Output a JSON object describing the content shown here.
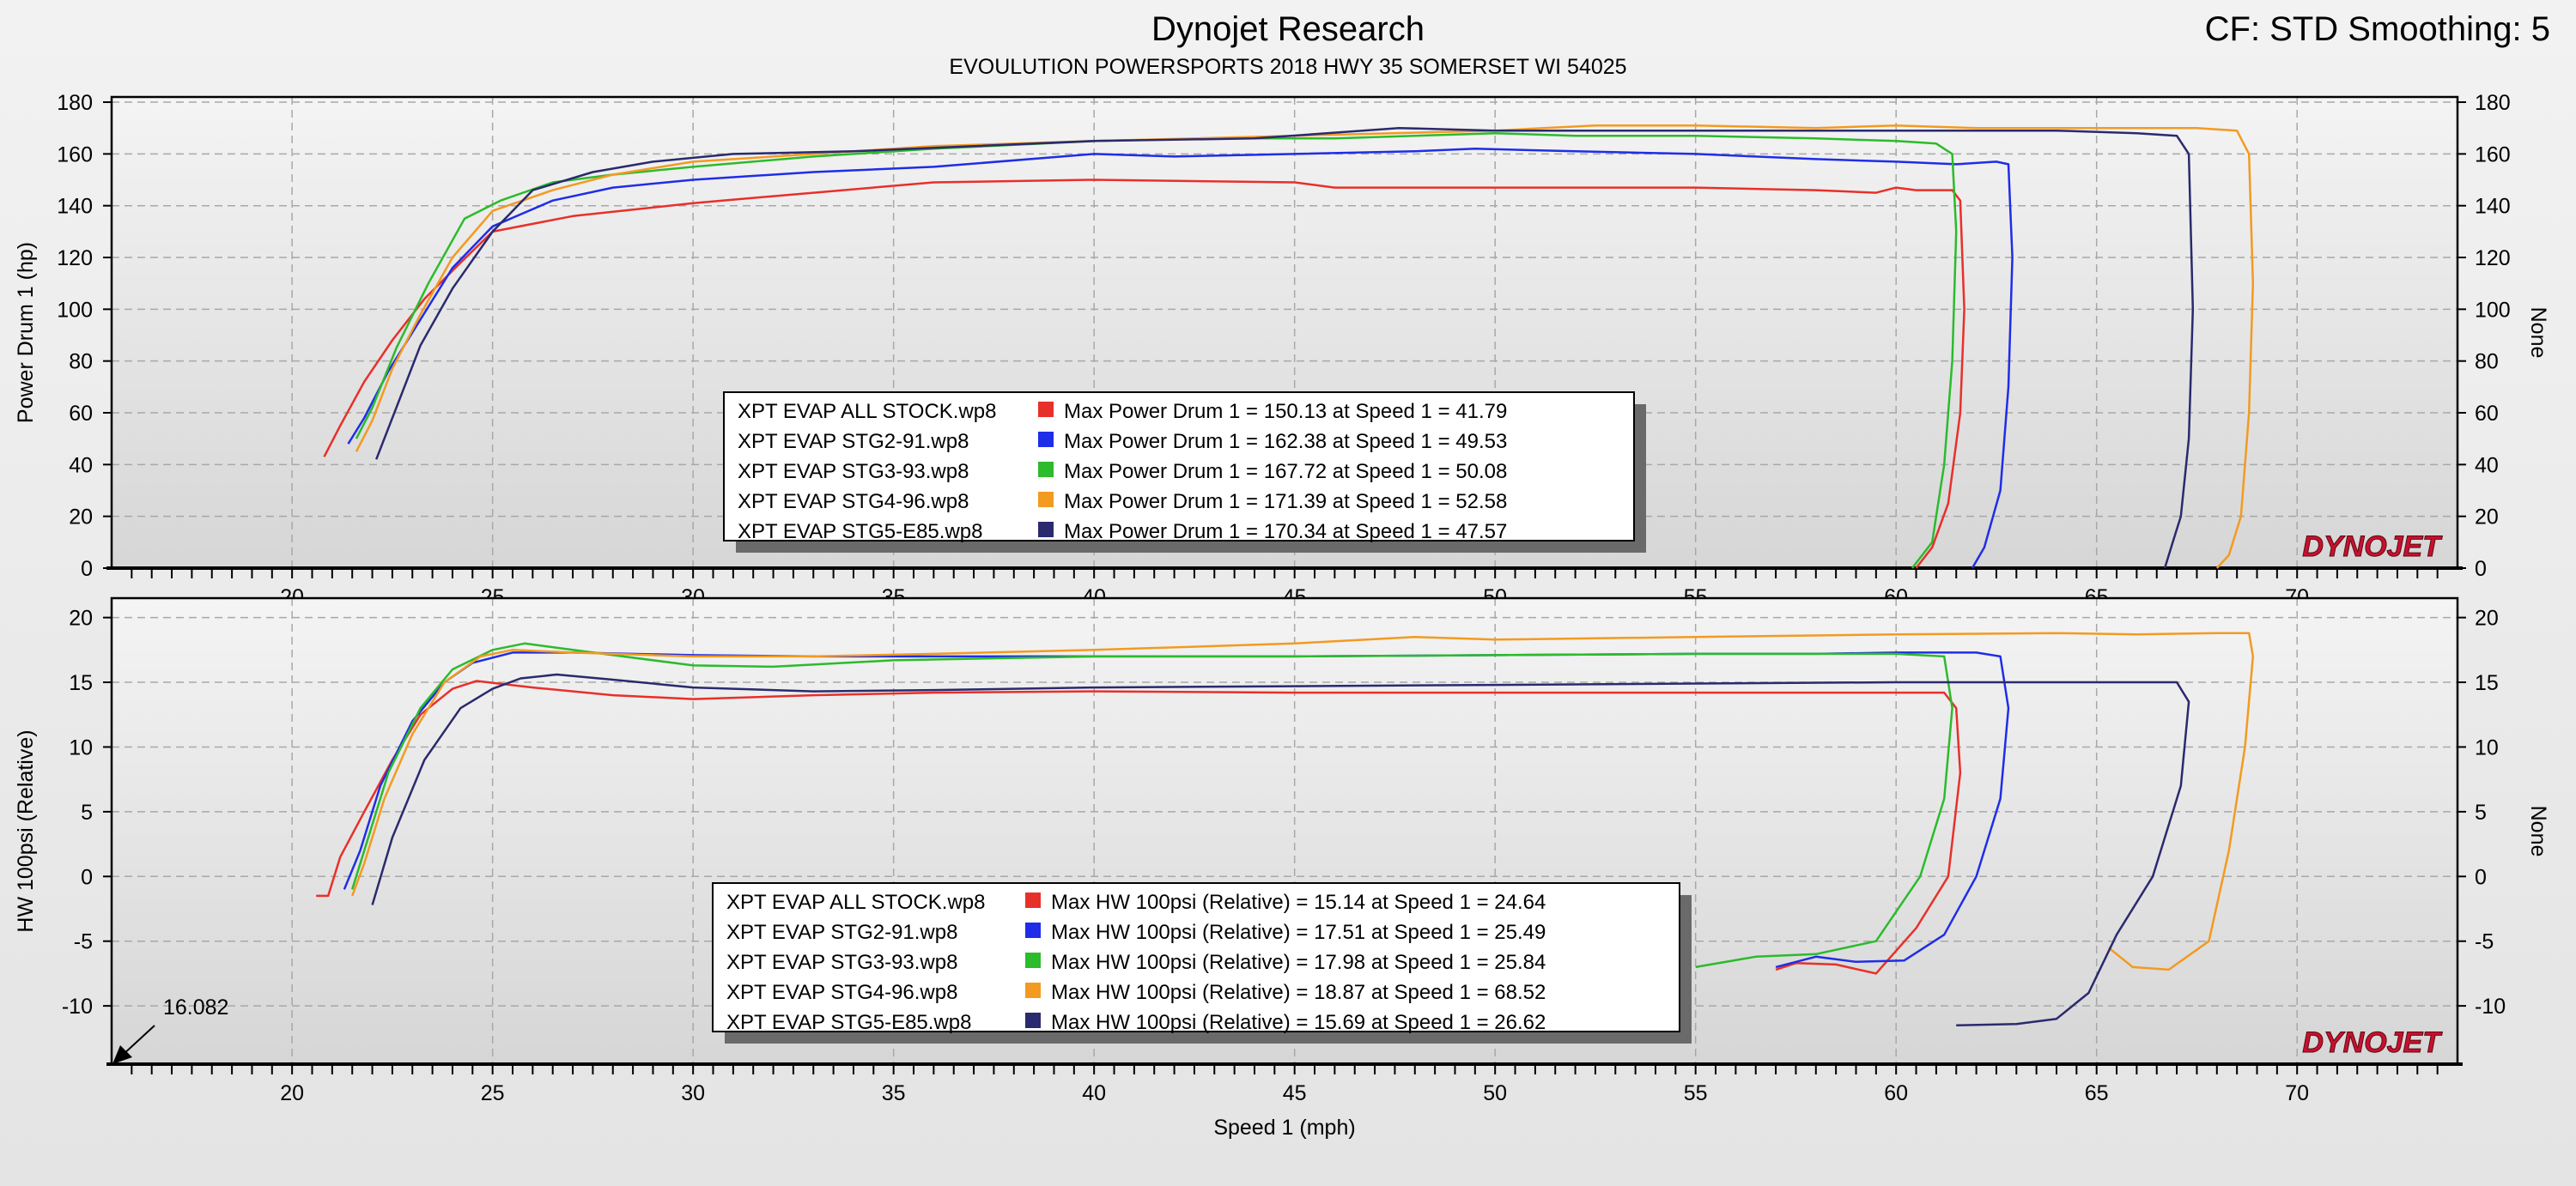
{
  "header": {
    "title": "Dynojet Research",
    "subtitle": "EVOULUTION POWERSPORTS 2018 HWY 35 SOMERSET WI 54025",
    "cf_info": "CF: STD Smoothing: 5"
  },
  "colors": {
    "run1": "#e8302a",
    "run2": "#1f2de8",
    "run3": "#2bbb2b",
    "run4": "#f39a21",
    "run5": "#2a2a6e",
    "brand_red": "#c8102e"
  },
  "brand_logo": "DYNOJET",
  "chart_data": [
    {
      "type": "line",
      "ylabel": "Power Drum 1 (hp)",
      "ylabel_right": "None",
      "xlabel": "Speed 1 (mph)",
      "xlim": [
        15.5,
        74
      ],
      "ylim": [
        0,
        182
      ],
      "x_ticks": [
        "20",
        "25",
        "30",
        "35",
        "40",
        "45",
        "50",
        "55",
        "60",
        "65",
        "70"
      ],
      "y_ticks": [
        "0",
        "20",
        "40",
        "60",
        "80",
        "100",
        "120",
        "140",
        "160",
        "180"
      ],
      "grid": true,
      "legend_position": "center-bottom",
      "series": [
        {
          "name": "XPT EVAP ALL STOCK.wp8",
          "color": "#e8302a",
          "x": [
            20.8,
            21.2,
            21.8,
            22.5,
            23.3,
            24.2,
            25.0,
            27.0,
            30.0,
            33.0,
            36.0,
            40.0,
            45.0,
            46.0,
            50.0,
            55.0,
            58.0,
            59.5,
            60.0,
            60.5,
            61.0,
            61.4,
            61.6,
            61.7,
            61.6,
            61.3,
            60.9,
            60.5
          ],
          "y": [
            43,
            55,
            72,
            88,
            104,
            118,
            130,
            136,
            141,
            145,
            149,
            150,
            149,
            147,
            147,
            147,
            146,
            145,
            147,
            146,
            146,
            146,
            142,
            100,
            60,
            25,
            8,
            0
          ]
        },
        {
          "name": "XPT EVAP STG2-91.wp8",
          "color": "#1f2de8",
          "x": [
            21.4,
            21.8,
            22.4,
            23.2,
            24.0,
            25.0,
            26.5,
            28.0,
            30.0,
            33.0,
            36.0,
            40.0,
            42.0,
            45.0,
            48.0,
            49.5,
            52.0,
            55.0,
            58.0,
            60.0,
            61.5,
            62.5,
            62.8,
            62.9,
            62.8,
            62.6,
            62.2,
            61.9
          ],
          "y": [
            48,
            58,
            76,
            96,
            116,
            132,
            142,
            147,
            150,
            153,
            155,
            160,
            159,
            160,
            161,
            162,
            161,
            160,
            158,
            157,
            156,
            157,
            156,
            120,
            70,
            30,
            8,
            0
          ]
        },
        {
          "name": "XPT EVAP STG3-93.wp8",
          "color": "#2bbb2b",
          "x": [
            21.6,
            22.0,
            22.6,
            23.4,
            24.3,
            25.2,
            26.5,
            28.0,
            30.0,
            33.0,
            36.0,
            40.0,
            43.0,
            46.0,
            50.0,
            52.0,
            55.0,
            58.0,
            60.0,
            61.0,
            61.4,
            61.5,
            61.4,
            61.2,
            60.9,
            60.4
          ],
          "y": [
            50,
            62,
            85,
            110,
            135,
            142,
            149,
            152,
            155,
            159,
            162,
            165,
            166,
            166,
            168,
            167,
            167,
            166,
            165,
            164,
            160,
            130,
            80,
            40,
            10,
            0
          ]
        },
        {
          "name": "XPT EVAP STG4-96.wp8",
          "color": "#f39a21",
          "x": [
            21.6,
            22.0,
            22.5,
            23.2,
            24.0,
            25.0,
            26.5,
            28.0,
            30.0,
            33.0,
            36.0,
            40.0,
            45.0,
            50.0,
            52.5,
            55.0,
            58.0,
            60.0,
            62.0,
            64.0,
            66.0,
            67.5,
            68.5,
            68.8,
            68.9,
            68.8,
            68.6,
            68.3,
            68.0
          ],
          "y": [
            45,
            57,
            77,
            98,
            120,
            138,
            146,
            152,
            157,
            160,
            163,
            165,
            167,
            169,
            171,
            171,
            170,
            171,
            170,
            170,
            170,
            170,
            169,
            160,
            110,
            60,
            20,
            5,
            0
          ]
        },
        {
          "name": "XPT EVAP STG5-E85.wp8",
          "color": "#2a2a6e",
          "x": [
            22.1,
            22.6,
            23.2,
            24.0,
            25.0,
            26.0,
            27.5,
            29.0,
            31.0,
            34.0,
            37.0,
            40.0,
            44.0,
            47.6,
            50.0,
            54.0,
            58.0,
            61.0,
            64.0,
            66.0,
            67.0,
            67.3,
            67.4,
            67.3,
            67.1,
            66.9,
            66.7
          ],
          "y": [
            42,
            62,
            86,
            108,
            130,
            146,
            153,
            157,
            160,
            161,
            163,
            165,
            166,
            170,
            169,
            169,
            169,
            169,
            169,
            168,
            167,
            160,
            100,
            50,
            20,
            10,
            0
          ]
        }
      ],
      "legend_stats": [
        "Max Power Drum 1 = 150.13 at Speed 1 = 41.79",
        "Max Power Drum 1 = 162.38 at Speed 1 = 49.53",
        "Max Power Drum 1 = 167.72 at Speed 1 = 50.08",
        "Max Power Drum 1 = 171.39 at Speed 1 = 52.58",
        "Max Power Drum 1 = 170.34 at Speed 1 = 47.57"
      ]
    },
    {
      "type": "line",
      "ylabel": "HW 100psi (Relative)",
      "ylabel_right": "None",
      "xlabel": "Speed 1 (mph)",
      "xlim": [
        15.5,
        74
      ],
      "ylim": [
        -14.5,
        21.5
      ],
      "x_ticks": [
        "20",
        "25",
        "30",
        "35",
        "40",
        "45",
        "50",
        "55",
        "60",
        "65",
        "70"
      ],
      "y_ticks": [
        "-10",
        "-5",
        "0",
        "5",
        "10",
        "15",
        "20"
      ],
      "grid": true,
      "legend_position": "center-bottom",
      "annotation": "16.082",
      "series": [
        {
          "name": "XPT EVAP ALL STOCK.wp8",
          "color": "#e8302a",
          "x": [
            20.6,
            20.9,
            21.2,
            21.8,
            22.5,
            23.2,
            24.0,
            24.6,
            26.0,
            28.0,
            30.0,
            33.0,
            36.0,
            40.0,
            45.0,
            50.0,
            55.0,
            58.0,
            60.0,
            61.2,
            61.5,
            61.6,
            61.3,
            60.5,
            59.5,
            58.5,
            57.5,
            57.0
          ],
          "y": [
            -1.5,
            -1.5,
            1.5,
            5,
            9,
            12.5,
            14.5,
            15.1,
            14.6,
            14,
            13.7,
            14,
            14.2,
            14.3,
            14.2,
            14.2,
            14.2,
            14.2,
            14.2,
            14.2,
            13,
            8,
            0,
            -4,
            -7.5,
            -6.8,
            -6.7,
            -7.2
          ]
        },
        {
          "name": "XPT EVAP STG2-91.wp8",
          "color": "#1f2de8",
          "x": [
            21.3,
            21.7,
            22.2,
            23.0,
            23.8,
            24.5,
            25.5,
            27.0,
            30.0,
            33.0,
            36.0,
            40.0,
            45.0,
            50.0,
            55.0,
            58.0,
            60.0,
            62.0,
            62.6,
            62.8,
            62.6,
            62.0,
            61.2,
            60.2,
            59.0,
            58.0,
            57.0
          ],
          "y": [
            -1,
            2,
            7,
            12,
            15,
            16.5,
            17.3,
            17.3,
            17.1,
            17,
            17,
            17,
            17,
            17.1,
            17.2,
            17.2,
            17.3,
            17.3,
            17,
            13,
            6,
            0,
            -4.5,
            -6.5,
            -6.6,
            -6.2,
            -7
          ]
        },
        {
          "name": "XPT EVAP STG3-93.wp8",
          "color": "#2bbb2b",
          "x": [
            21.5,
            21.9,
            22.4,
            23.2,
            24.0,
            25.0,
            25.8,
            27.0,
            30.0,
            32.0,
            35.0,
            40.0,
            45.0,
            50.0,
            55.0,
            58.0,
            60.0,
            61.2,
            61.4,
            61.2,
            60.6,
            59.5,
            58.0,
            56.5,
            55.0
          ],
          "y": [
            -1,
            3,
            8,
            13,
            16,
            17.5,
            18,
            17.5,
            16.3,
            16.2,
            16.7,
            17,
            17,
            17.1,
            17.2,
            17.2,
            17.2,
            17,
            13,
            6,
            0,
            -5,
            -6,
            -6.2,
            -7
          ]
        },
        {
          "name": "XPT EVAP STG4-96.wp8",
          "color": "#f39a21",
          "x": [
            21.5,
            21.8,
            22.3,
            23.0,
            23.8,
            24.7,
            25.5,
            27.0,
            30.0,
            33.0,
            36.0,
            40.0,
            45.0,
            48.0,
            50.0,
            55.0,
            60.0,
            64.0,
            66.0,
            68.0,
            68.8,
            68.9,
            68.7,
            68.3,
            67.8,
            66.8,
            65.9,
            65.3
          ],
          "y": [
            -1.5,
            1,
            6,
            11,
            15,
            17,
            17.5,
            17.3,
            17,
            17,
            17.2,
            17.5,
            18,
            18.5,
            18.3,
            18.5,
            18.7,
            18.8,
            18.7,
            18.8,
            18.8,
            17,
            10,
            2,
            -5,
            -7.2,
            -7,
            -5.5
          ]
        },
        {
          "name": "XPT EVAP STG5-E85.wp8",
          "color": "#2a2a6e",
          "x": [
            22.0,
            22.5,
            23.3,
            24.2,
            25.0,
            25.7,
            26.6,
            28.0,
            30.0,
            33.0,
            36.0,
            40.0,
            45.0,
            50.0,
            55.0,
            60.0,
            64.0,
            66.0,
            67.0,
            67.3,
            67.1,
            66.4,
            65.5,
            64.8,
            64.0,
            63.0,
            61.5
          ],
          "y": [
            -2.2,
            3,
            9,
            13,
            14.5,
            15.3,
            15.6,
            15.2,
            14.6,
            14.3,
            14.4,
            14.6,
            14.7,
            14.8,
            14.9,
            15,
            15,
            15,
            15,
            13.5,
            7,
            0,
            -4.5,
            -9,
            -11,
            -11.4,
            -11.5
          ]
        }
      ],
      "legend_stats": [
        "Max HW 100psi (Relative) = 15.14 at Speed 1 = 24.64",
        "Max HW 100psi (Relative) = 17.51 at Speed 1 = 25.49",
        "Max HW 100psi (Relative) = 17.98 at Speed 1 = 25.84",
        "Max HW 100psi (Relative) = 18.87 at Speed 1 = 68.52",
        "Max HW 100psi (Relative) = 15.69 at Speed 1 = 26.62"
      ]
    }
  ]
}
